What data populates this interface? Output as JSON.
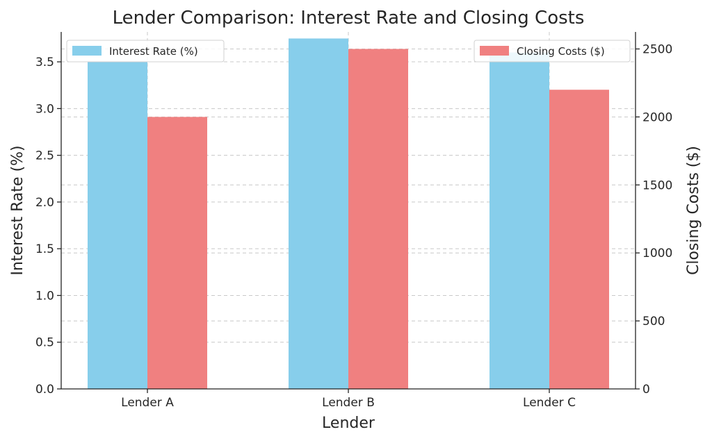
{
  "chart_data": {
    "type": "bar",
    "title": "Lender Comparison: Interest Rate and Closing Costs",
    "xlabel": "Lender",
    "categories": [
      "Lender A",
      "Lender B",
      "Lender C"
    ],
    "series": [
      {
        "name": "Interest Rate (%)",
        "axis": "left",
        "color": "#87CEEB",
        "values": [
          3.5,
          3.75,
          3.6
        ]
      },
      {
        "name": "Closing Costs ($)",
        "axis": "right",
        "color": "#F08080",
        "values": [
          2000,
          2500,
          2200
        ]
      }
    ],
    "y_left": {
      "label": "Interest Rate (%)",
      "range": [
        0,
        3.82
      ],
      "ticks": [
        "0.0",
        "0.5",
        "1.0",
        "1.5",
        "2.0",
        "2.5",
        "3.0",
        "3.5"
      ]
    },
    "y_right": {
      "label": "Closing Costs ($)",
      "range": [
        0,
        2625
      ],
      "ticks": [
        "0",
        "500",
        "1000",
        "1500",
        "2000",
        "2500"
      ]
    },
    "grid": true,
    "legend_left_placement": "upper-left",
    "legend_right_placement": "upper-right"
  }
}
